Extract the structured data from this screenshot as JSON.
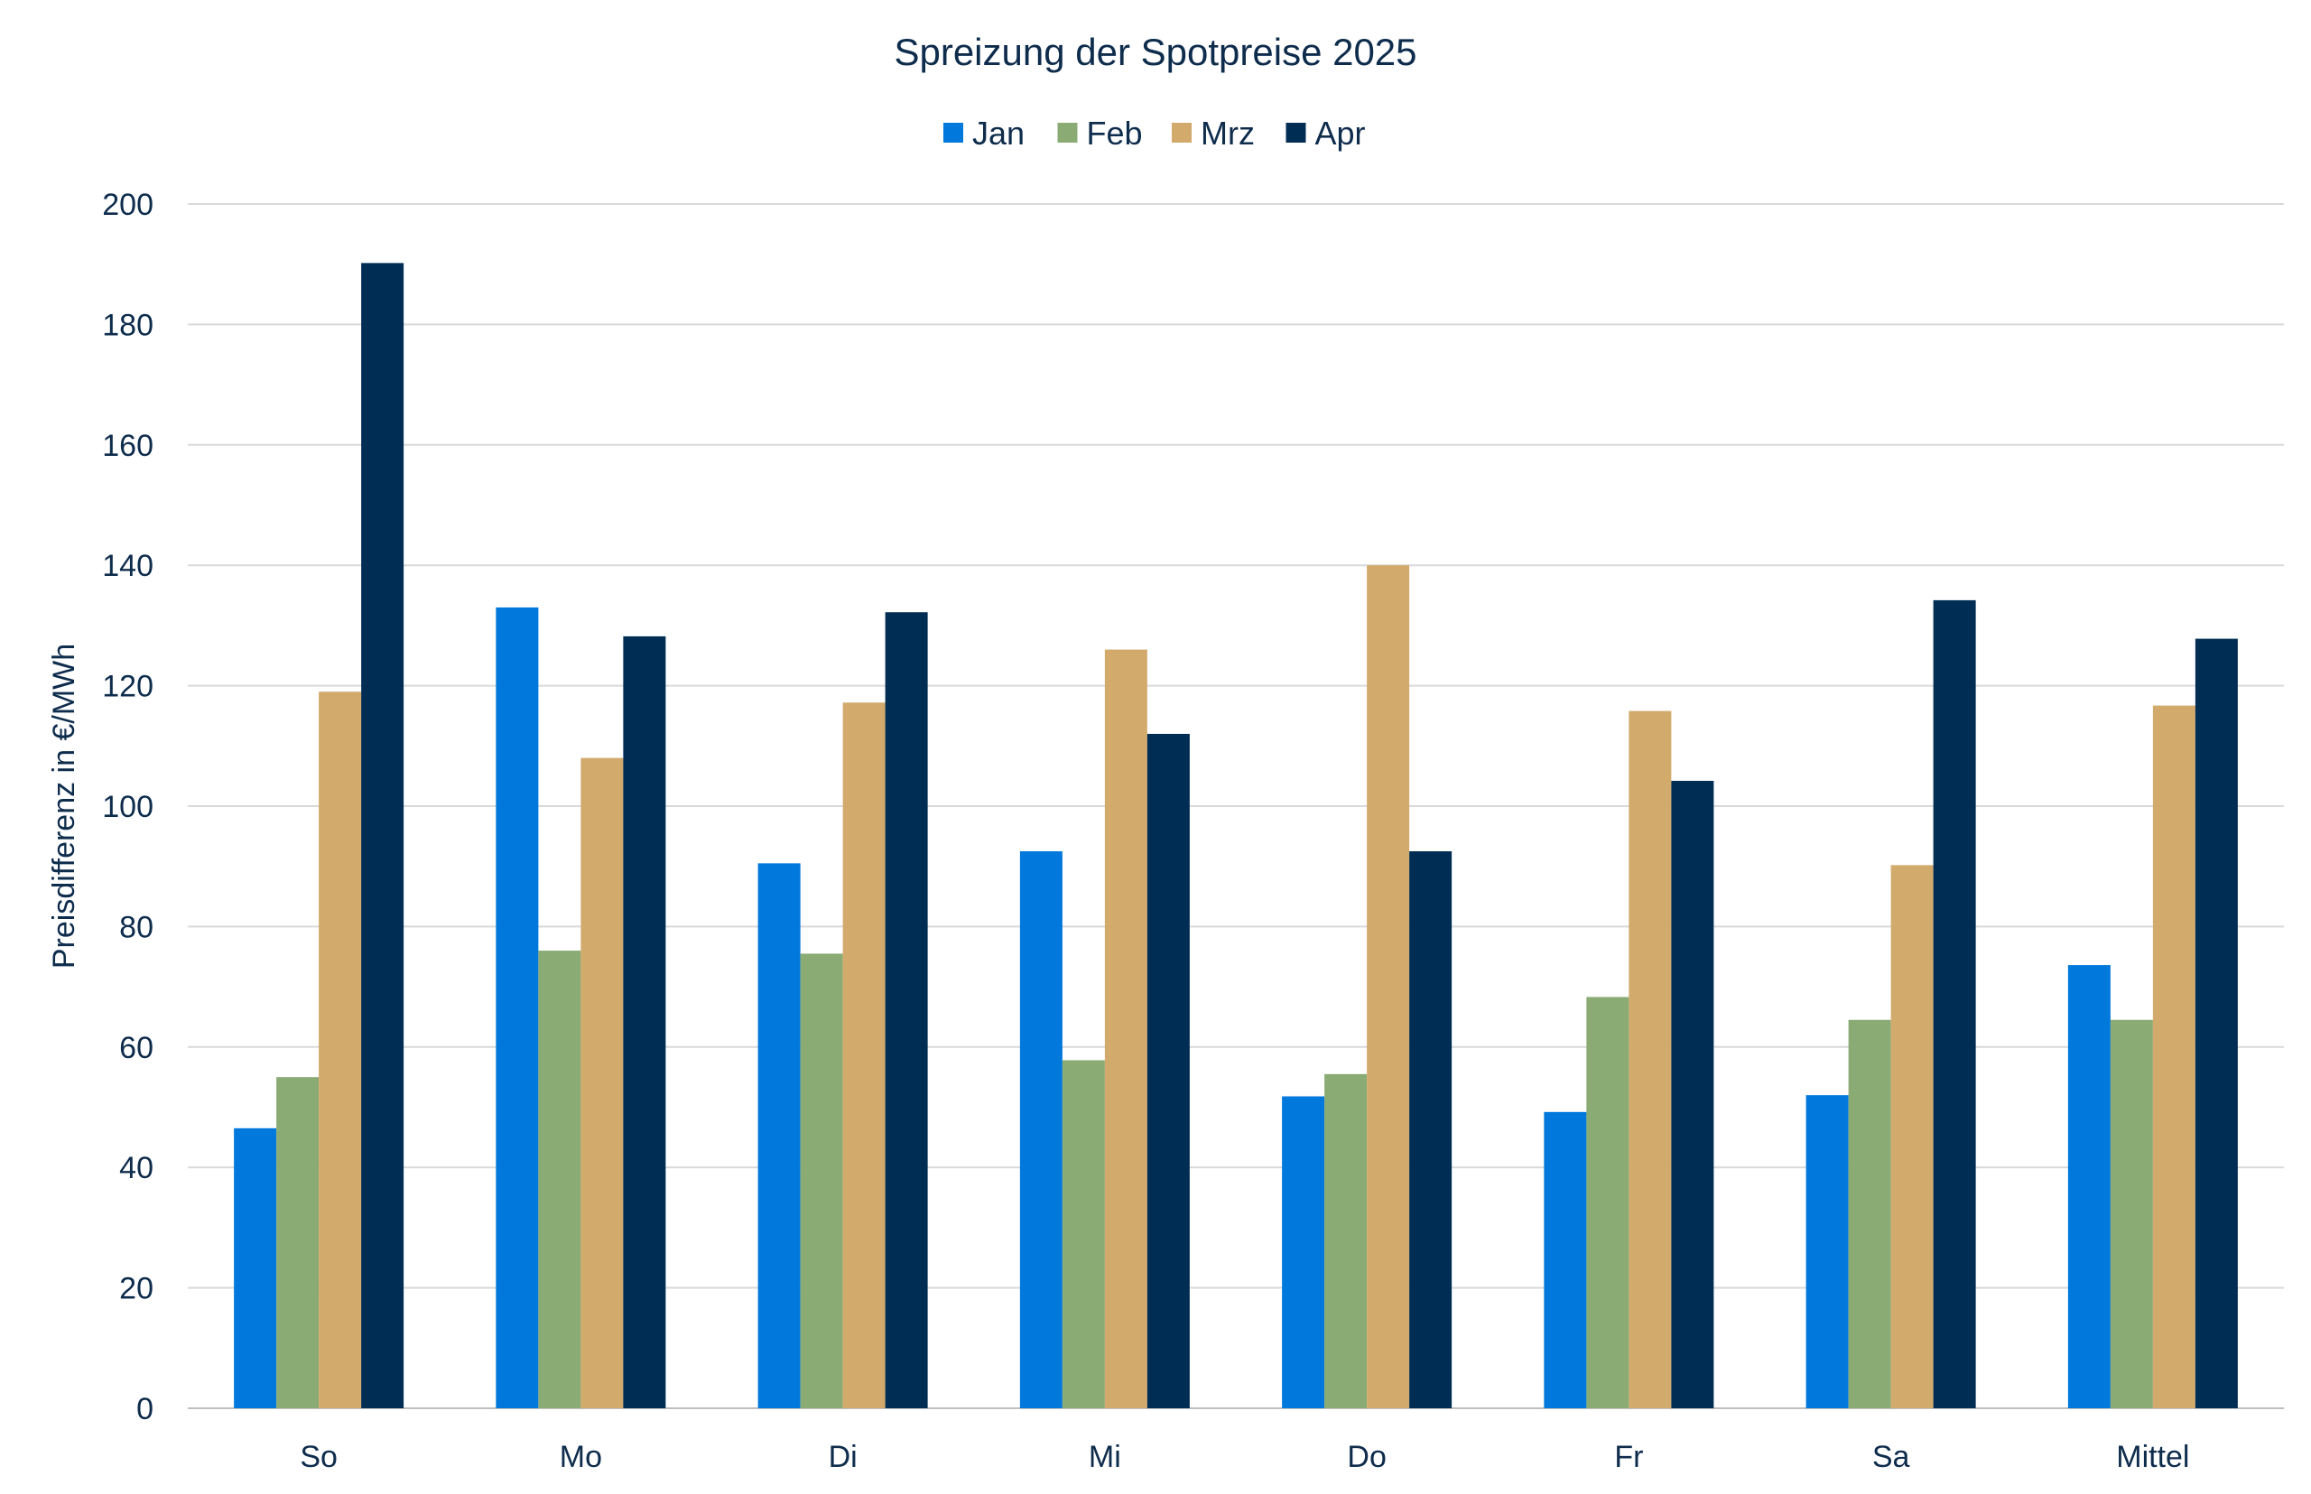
{
  "chart_data": {
    "type": "bar",
    "title": "Spreizung der Spotpreise 2025",
    "xlabel": "",
    "ylabel": "Preisdifferenz in €/MWh",
    "ylim": [
      0,
      200
    ],
    "yticks": [
      0,
      20,
      40,
      60,
      80,
      100,
      120,
      140,
      160,
      180,
      200
    ],
    "grid": true,
    "legend_position": "top",
    "categories": [
      "So",
      "Mo",
      "Di",
      "Mi",
      "Do",
      "Fr",
      "Sa",
      "Mittel"
    ],
    "series": [
      {
        "name": "Jan",
        "color": "#0078dc",
        "values": [
          46.5,
          133,
          90.5,
          92.5,
          51.8,
          49.2,
          52,
          73.6
        ]
      },
      {
        "name": "Feb",
        "color": "#8aab74",
        "values": [
          55,
          76,
          75.5,
          57.8,
          55.5,
          68.3,
          64.5,
          64.5
        ]
      },
      {
        "name": "Mrz",
        "color": "#d2aa6c",
        "values": [
          119,
          108,
          117.2,
          126,
          140,
          115.8,
          90.2,
          116.7
        ]
      },
      {
        "name": "Apr",
        "color": "#002d54",
        "values": [
          190.2,
          128.2,
          132.2,
          112,
          92.5,
          104.2,
          134.2,
          127.8
        ]
      }
    ]
  }
}
